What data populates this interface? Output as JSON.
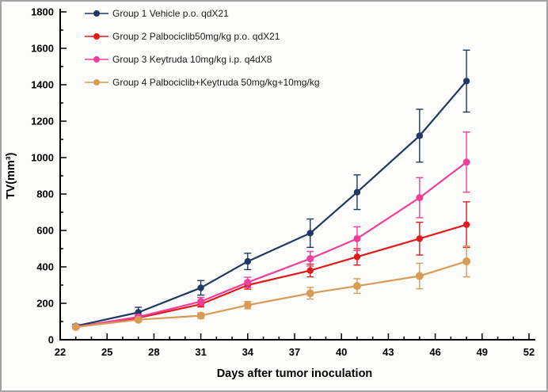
{
  "figure": {
    "background": "#fcfcfa",
    "border_color": "#a3a3a3"
  },
  "chart_data": {
    "type": "line",
    "title": "",
    "xlabel": "Days after tumor inoculation",
    "ylabel": "TV(mm³)",
    "xlim": [
      22,
      52
    ],
    "ylim": [
      0,
      1800
    ],
    "x_tick_step": 3,
    "x_minor_step": 1,
    "y_tick_step": 200,
    "y_minor_step": 100,
    "x_tick_labels": [
      22,
      25,
      28,
      31,
      34,
      37,
      40,
      43,
      46,
      49,
      52
    ],
    "y_tick_labels": [
      0,
      200,
      400,
      600,
      800,
      1000,
      1200,
      1400,
      1600,
      1800
    ],
    "grid": false,
    "legend_position": "top-left",
    "x": [
      23,
      27,
      31,
      34,
      38,
      41,
      45,
      48
    ],
    "series": [
      {
        "name": "Group 1 Vehicle p.o. qdX21",
        "color": "#1f3864",
        "marker": "circle",
        "marker_r": 4.2,
        "values": [
          75,
          150,
          285,
          430,
          585,
          810,
          1120,
          1420
        ],
        "errors": [
          10,
          28,
          40,
          45,
          78,
          95,
          145,
          170
        ]
      },
      {
        "name": "Group 2 Palbociclib50mg/kg p.o. qdX21",
        "color": "#df1b1c",
        "marker": "circle",
        "marker_r": 4.2,
        "values": [
          70,
          120,
          195,
          300,
          380,
          455,
          555,
          632
        ],
        "errors": [
          8,
          10,
          15,
          22,
          35,
          45,
          90,
          125
        ]
      },
      {
        "name": "Group 3 Keytruda 10mg/kg i.p. q4dX8",
        "color": "#ee3f9b",
        "marker": "circle",
        "marker_r": 4.5,
        "values": [
          70,
          125,
          210,
          315,
          445,
          555,
          780,
          975
        ],
        "errors": [
          8,
          12,
          22,
          28,
          40,
          65,
          110,
          165
        ]
      },
      {
        "name": "Group 4 Palbociclib+Keytruda 50mg/kg+10mg/kg",
        "color": "#d89b55",
        "marker": "circle",
        "marker_r": 5,
        "values": [
          70,
          110,
          132,
          190,
          255,
          295,
          350,
          430
        ],
        "errors": [
          8,
          10,
          15,
          20,
          32,
          40,
          70,
          85
        ]
      }
    ]
  }
}
